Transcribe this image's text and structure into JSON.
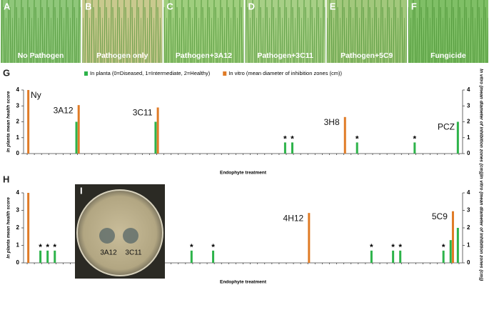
{
  "photos": [
    {
      "letter": "A",
      "caption": "No Pathogen"
    },
    {
      "letter": "B",
      "caption": "Pathogen only"
    },
    {
      "letter": "C",
      "caption": "Pathogen+3A12"
    },
    {
      "letter": "D",
      "caption": "Pathogen+3C11"
    },
    {
      "letter": "E",
      "caption": "Pathogen+5C9"
    },
    {
      "letter": "F",
      "caption": "Fungicide"
    }
  ],
  "inset": {
    "letter": "I",
    "labels": [
      "3A12",
      "3C11"
    ]
  },
  "chart_data": [
    {
      "type": "bar",
      "panel": "G",
      "xlabel": "Endophyte treatment",
      "ylabel": "In planta mean health score",
      "y2label": "In vitro (mean diameter of inhibition zones (cm))",
      "ylim": [
        0,
        4
      ],
      "yticks": [
        0,
        1,
        2,
        3,
        4
      ],
      "y2lim": [
        0,
        4
      ],
      "y2ticks": [
        0,
        1,
        2,
        3,
        4
      ],
      "categories": [
        null,
        null,
        null,
        null,
        null,
        null,
        null,
        null,
        null,
        null,
        null,
        null,
        null,
        null,
        null,
        null,
        null,
        null,
        null,
        null,
        null,
        null,
        null,
        null,
        null,
        null,
        null,
        null,
        null,
        null,
        null,
        null,
        null,
        null,
        null,
        null,
        null,
        null,
        null,
        null,
        null,
        null,
        null,
        null,
        null,
        null,
        null,
        null,
        null,
        null,
        null,
        null,
        null,
        null,
        null,
        null,
        null,
        null,
        null,
        null,
        null
      ],
      "series": [
        {
          "name": "In planta (0=Diseased, 1=Intermediate, 2=Healthy)",
          "color": "#2db34a",
          "values": [
            0,
            0,
            0,
            0,
            0,
            0,
            0,
            2,
            0,
            0,
            0,
            0,
            0,
            0,
            0,
            0,
            0,
            0,
            2,
            0,
            0,
            0,
            0,
            0,
            0,
            0,
            0,
            0,
            0,
            0,
            0,
            0,
            0,
            0,
            0,
            0,
            0.7,
            0.7,
            0,
            0,
            0,
            0,
            0,
            0,
            0,
            0,
            0.7,
            0,
            0,
            0,
            0,
            0,
            0,
            0,
            0.7,
            0,
            0,
            0,
            0,
            0,
            2
          ]
        },
        {
          "name": "In vitro (mean diameter of inhibition zones (cm))",
          "color": "#e07b26",
          "axis": "y2",
          "values": [
            4,
            0,
            0,
            0,
            0,
            0,
            0,
            3.05,
            0,
            0,
            0,
            0,
            0,
            0,
            0,
            0,
            0,
            0,
            2.9,
            0,
            0,
            0,
            0,
            0,
            0,
            0,
            0,
            0,
            0,
            0,
            0,
            0,
            0,
            0,
            0,
            0,
            0,
            0,
            0,
            0,
            0,
            0,
            0,
            0,
            2.3,
            0,
            0,
            0,
            0,
            0,
            0,
            0,
            0,
            0,
            0,
            0,
            0,
            0,
            0,
            0,
            0
          ]
        }
      ],
      "annotations": [
        {
          "text": "Ny",
          "index": 0
        },
        {
          "text": "3A12",
          "index": 7
        },
        {
          "text": "3C11",
          "index": 18
        },
        {
          "text": "3H8",
          "index": 44
        },
        {
          "text": "PCZ",
          "index": 60
        }
      ],
      "stars": [
        {
          "text": "*",
          "index": 36
        },
        {
          "text": "*",
          "index": 37
        },
        {
          "text": "*",
          "index": 46
        },
        {
          "text": "*",
          "index": 54
        }
      ]
    },
    {
      "type": "bar",
      "panel": "H",
      "xlabel": "Endophyte treatment",
      "ylabel": "In planta mean health score",
      "y2label": "In vitro (mean diameter of inhibition zones (cm))",
      "ylim": [
        0,
        4
      ],
      "yticks": [
        0,
        1,
        2,
        3,
        4
      ],
      "y2lim": [
        0,
        4
      ],
      "y2ticks": [
        0,
        1,
        2,
        3,
        4
      ],
      "categories": [
        null,
        null,
        null,
        null,
        null,
        null,
        null,
        null,
        null,
        null,
        null,
        null,
        null,
        null,
        null,
        null,
        null,
        null,
        null,
        null,
        null,
        null,
        null,
        null,
        null,
        null,
        null,
        null,
        null,
        null,
        null,
        null,
        null,
        null,
        null,
        null,
        null,
        null,
        null,
        null,
        null,
        null,
        null,
        null,
        null,
        null,
        null,
        null,
        null,
        null,
        null,
        null,
        null,
        null,
        null,
        null,
        null,
        null,
        null,
        null,
        null
      ],
      "series": [
        {
          "color": "#2db34a",
          "values": [
            0,
            0,
            0.7,
            0.7,
            0.7,
            0,
            0,
            0,
            0,
            0,
            0,
            0,
            0,
            0,
            0,
            0,
            0,
            0,
            0,
            0,
            0,
            0,
            0,
            0.7,
            0,
            0,
            0.7,
            0,
            0,
            0,
            0,
            0,
            0,
            0,
            0,
            0,
            0,
            0,
            0,
            0,
            0,
            0,
            0,
            0,
            0,
            0,
            0,
            0,
            0.7,
            0,
            0,
            0.7,
            0.7,
            0,
            0,
            0,
            0,
            0,
            0.7,
            1.3,
            2
          ]
        },
        {
          "color": "#e07b26",
          "axis": "y2",
          "values": [
            4,
            0,
            0,
            0,
            0,
            0,
            0,
            0,
            0,
            0,
            0,
            0,
            0,
            0,
            0,
            0,
            0,
            0,
            0,
            0,
            0,
            0,
            0,
            0,
            0,
            0,
            0,
            0,
            0,
            0,
            0,
            0,
            0,
            0,
            0,
            0,
            0,
            0,
            0,
            2.85,
            0,
            0,
            0,
            0,
            0,
            0,
            0,
            0,
            0,
            0,
            0,
            0,
            0,
            0,
            0,
            0,
            0,
            0,
            0,
            2.95,
            0
          ]
        }
      ],
      "annotations": [
        {
          "text": "4H12",
          "index": 39
        },
        {
          "text": "5C9",
          "index": 59
        }
      ],
      "stars": [
        {
          "text": "*",
          "index": 2
        },
        {
          "text": "*",
          "index": 3
        },
        {
          "text": "*",
          "index": 4
        },
        {
          "text": "*",
          "index": 23
        },
        {
          "text": "*",
          "index": 26
        },
        {
          "text": "*",
          "index": 48
        },
        {
          "text": "*",
          "index": 51
        },
        {
          "text": "*",
          "index": 52
        },
        {
          "text": "*",
          "index": 58
        }
      ]
    }
  ]
}
